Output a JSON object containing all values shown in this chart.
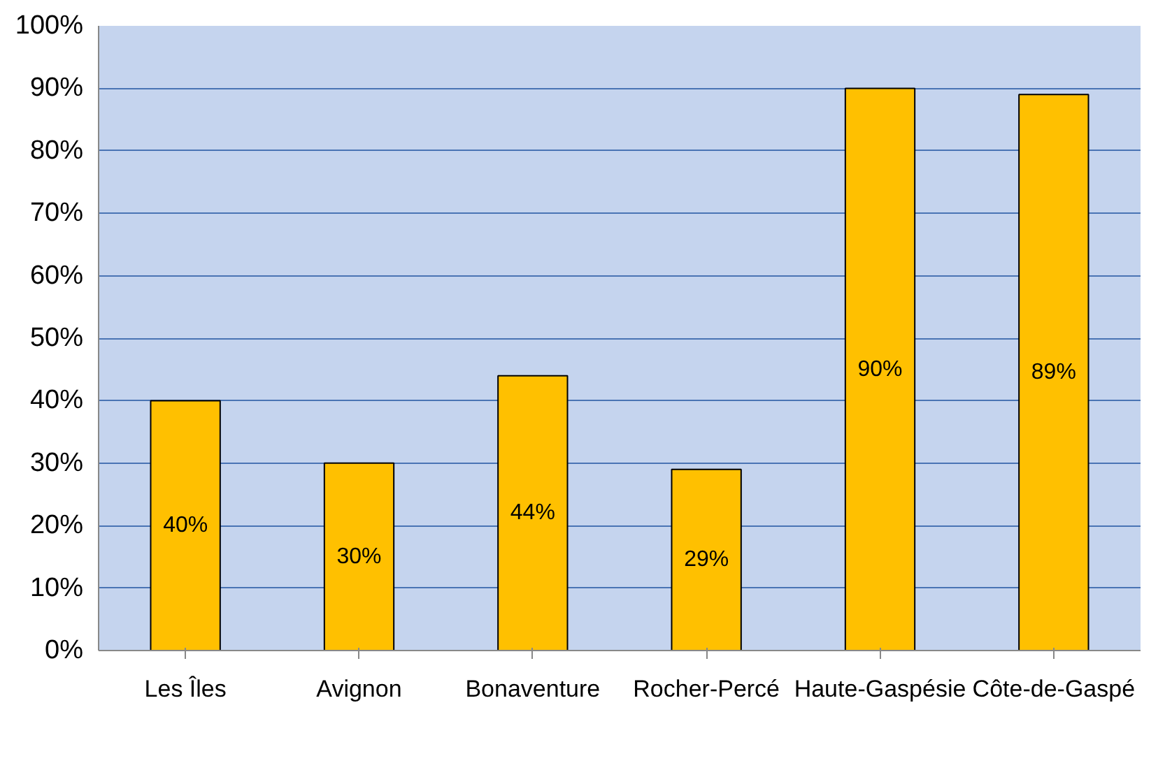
{
  "chart_data": {
    "type": "bar",
    "categories": [
      "Les Îles",
      "Avignon",
      "Bonaventure",
      "Rocher-Percé",
      "Haute-Gaspésie",
      "Côte-de-Gaspé"
    ],
    "values": [
      40,
      30,
      44,
      29,
      90,
      89
    ],
    "value_labels": [
      "40%",
      "30%",
      "44%",
      "29%",
      "90%",
      "89%"
    ],
    "color": "#ffc000",
    "ylim": [
      0,
      100
    ],
    "yticks": [
      {
        "value": 0,
        "label": "0%"
      },
      {
        "value": 10,
        "label": "10%"
      },
      {
        "value": 20,
        "label": "20%"
      },
      {
        "value": 30,
        "label": "30%"
      },
      {
        "value": 40,
        "label": "40%"
      },
      {
        "value": 50,
        "label": "50%"
      },
      {
        "value": 60,
        "label": "60%"
      },
      {
        "value": 70,
        "label": "70%"
      },
      {
        "value": 80,
        "label": "80%"
      },
      {
        "value": 90,
        "label": "90%"
      },
      {
        "value": 100,
        "label": "100%"
      }
    ],
    "grid": "y"
  }
}
